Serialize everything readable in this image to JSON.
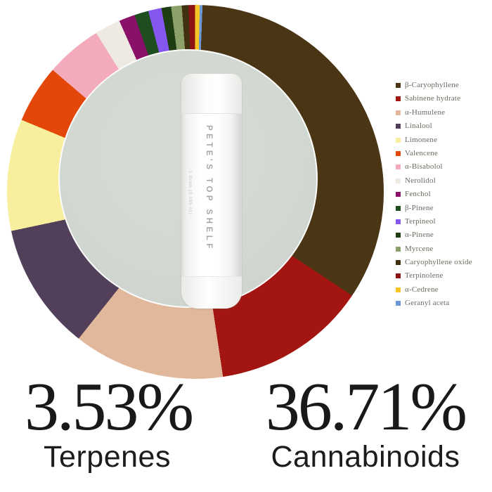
{
  "product": {
    "name": "PETE'S TOP SHELF",
    "size_label": "1 Gram (0.035 oz)"
  },
  "chart_data": {
    "type": "pie",
    "style": "donut",
    "title": "",
    "legend_position": "right",
    "start_angle_deg": 2.2,
    "direction": "clockwise",
    "segments": [
      {
        "label": "β-Caryophyllene",
        "color": "#4a3514",
        "angle_deg": 121.3,
        "share_pct": 33.7
      },
      {
        "label": "Sabinene hydrate",
        "color": "#a21510",
        "angle_deg": 48.0,
        "share_pct": 13.3
      },
      {
        "label": "α-Humulene",
        "color": "#e2b89d",
        "angle_deg": 47.0,
        "share_pct": 13.1
      },
      {
        "label": "Linalool",
        "color": "#52405a",
        "angle_deg": 39.5,
        "share_pct": 11.0
      },
      {
        "label": "Limonene",
        "color": "#f7ef9d",
        "angle_deg": 34.5,
        "share_pct": 9.6
      },
      {
        "label": "Valencene",
        "color": "#e4470a",
        "angle_deg": 18.0,
        "share_pct": 5.0
      },
      {
        "label": "α-Bisabolol",
        "color": "#f3aabb",
        "angle_deg": 17.5,
        "share_pct": 4.9
      },
      {
        "label": "Nerolidol",
        "color": "#eeeae2",
        "angle_deg": 8.0,
        "share_pct": 2.2
      },
      {
        "label": "Fenchol",
        "color": "#8a1169",
        "angle_deg": 5.0,
        "share_pct": 1.4
      },
      {
        "label": "β-Pinene",
        "color": "#1e4e20",
        "angle_deg": 4.4,
        "share_pct": 1.2
      },
      {
        "label": "Terpineol",
        "color": "#8457f0",
        "angle_deg": 4.1,
        "share_pct": 1.1
      },
      {
        "label": "α-Pinene",
        "color": "#1e3d12",
        "angle_deg": 3.0,
        "share_pct": 0.8
      },
      {
        "label": "Myrcene",
        "color": "#8ba169",
        "angle_deg": 3.3,
        "share_pct": 0.9
      },
      {
        "label": "Caryophyllene oxide",
        "color": "#423110",
        "angle_deg": 2.1,
        "share_pct": 0.6
      },
      {
        "label": "Terpinolene",
        "color": "#8e1414",
        "angle_deg": 1.95,
        "share_pct": 0.5
      },
      {
        "label": "α-Cedrene",
        "color": "#f5c526",
        "angle_deg": 1.5,
        "share_pct": 0.4
      },
      {
        "label": "Geranyl aceta",
        "color": "#6c98d6",
        "angle_deg": 0.85,
        "share_pct": 0.2
      }
    ]
  },
  "stats": [
    {
      "value": "3.53%",
      "label": "Terpenes"
    },
    {
      "value": "36.71%",
      "label": "Cannabinoids"
    }
  ],
  "colors": {
    "background": "#ffffff",
    "disc_bg": "#d2d8d2",
    "stat_text": "#1a1a1a",
    "legend_text": "#6e6960"
  }
}
